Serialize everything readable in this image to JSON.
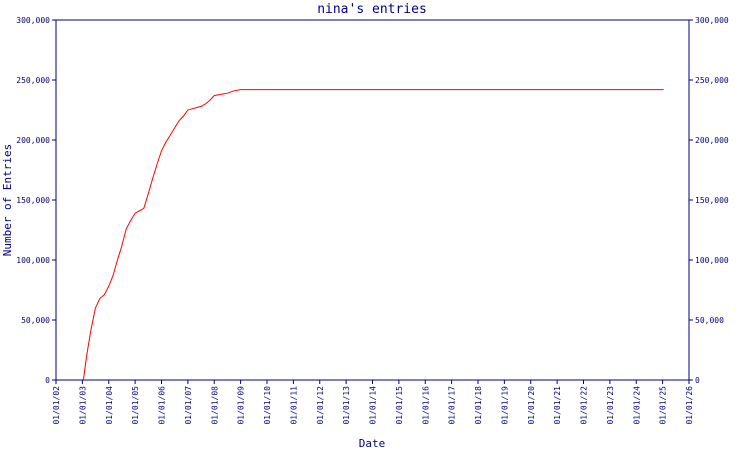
{
  "chart_data": {
    "type": "line",
    "title": "nina's entries",
    "xlabel": "Date",
    "ylabel": "Number of Entries",
    "x_tick_labels": [
      "01/01/02",
      "01/01/03",
      "01/01/04",
      "01/01/05",
      "01/01/06",
      "01/01/07",
      "01/01/08",
      "01/01/09",
      "01/01/10",
      "01/01/11",
      "01/01/12",
      "01/01/13",
      "01/01/14",
      "01/01/15",
      "01/01/16",
      "01/01/17",
      "01/01/18",
      "01/01/19",
      "01/01/20",
      "01/01/21",
      "01/01/22",
      "01/01/23",
      "01/01/24",
      "01/01/25",
      "01/01/26"
    ],
    "y_ticks": [
      0,
      50000,
      100000,
      150000,
      200000,
      250000,
      300000
    ],
    "y_tick_labels": [
      "0",
      "50,000",
      "100,000",
      "150,000",
      "200,000",
      "250,000",
      "300,000"
    ],
    "ylim": [
      0,
      300000
    ],
    "grid": false,
    "y_axis_right": true,
    "line_color": "#ff0000",
    "axis_color": "#000080",
    "series": [
      {
        "x": [
          "2003-01-15",
          "2003-03-01",
          "2003-05-01",
          "2003-07-01",
          "2003-09-01",
          "2003-11-01",
          "2004-01-01",
          "2004-03-01",
          "2004-05-01",
          "2004-07-01",
          "2004-09-01",
          "2004-11-01",
          "2005-01-01",
          "2005-03-01",
          "2005-05-01",
          "2005-07-01",
          "2005-09-01",
          "2005-11-01",
          "2006-01-01",
          "2006-03-01",
          "2006-05-01",
          "2006-07-01",
          "2006-09-01",
          "2006-11-01",
          "2007-01-01",
          "2007-03-01",
          "2007-05-01",
          "2007-07-01",
          "2007-09-01",
          "2007-11-01",
          "2008-01-01",
          "2008-04-01",
          "2008-07-01",
          "2008-10-01",
          "2009-01-01",
          "2012-01-01",
          "2016-01-01",
          "2020-01-01",
          "2024-01-01",
          "2025-01-15"
        ],
        "values": [
          0,
          20000,
          42000,
          60000,
          68000,
          71000,
          78000,
          87000,
          100000,
          112000,
          126000,
          133000,
          139000,
          141000,
          143000,
          155000,
          168000,
          180000,
          191000,
          198000,
          204000,
          210000,
          216000,
          220000,
          225000,
          226000,
          227000,
          228000,
          230000,
          233000,
          237000,
          238000,
          239000,
          241000,
          242000,
          242000,
          242000,
          242000,
          242000,
          242000
        ]
      }
    ]
  }
}
